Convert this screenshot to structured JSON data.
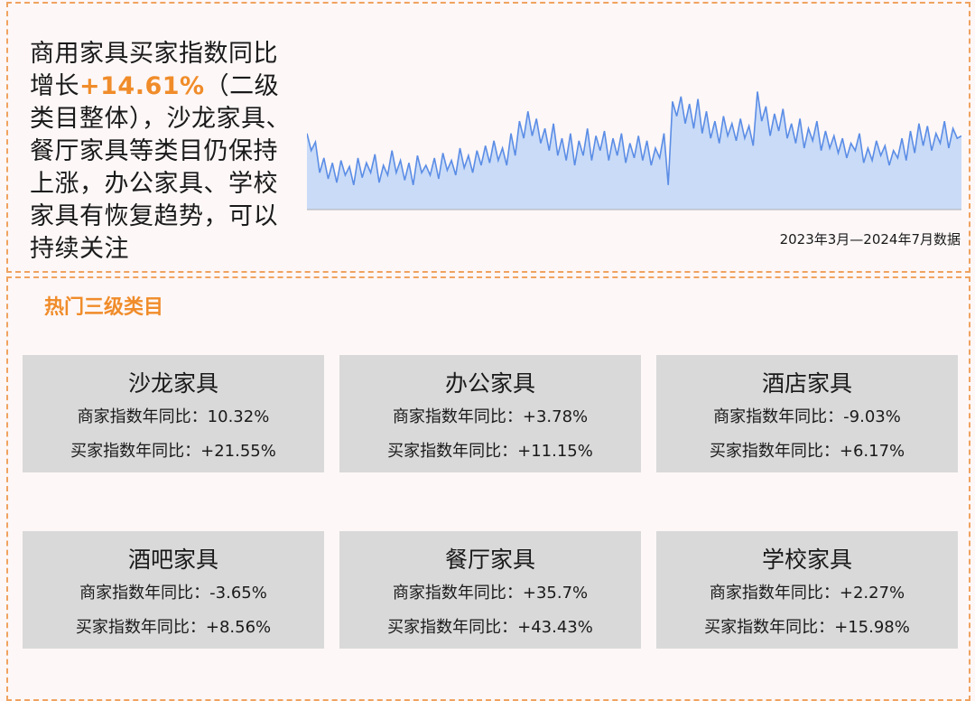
{
  "summary": {
    "part1": "商用家具买家指数同比增长",
    "highlight": "+14.61%",
    "part2": "（二级类目整体），沙龙家具、餐厅家具等类目仍保持上涨，办公家具、学校家具有恢复趋势，可以持续关注"
  },
  "chart_note": "2023年3月—2024年7月数据",
  "section_title": "热门三级类目",
  "colors": {
    "accent": "#f08c2a",
    "border": "#f0a360",
    "chart_line": "#5b8de6",
    "chart_fill": "#c9dbf7",
    "card_bg": "#d9d9d9"
  },
  "categories": [
    {
      "name": "沙龙家具",
      "seller": "商家指数年同比：10.32%",
      "buyer": "买家指数年同比：+21.55%"
    },
    {
      "name": "办公家具",
      "seller": "商家指数年同比：+3.78%",
      "buyer": "买家指数年同比：+11.15%"
    },
    {
      "name": "酒店家具",
      "seller": "商家指数年同比：-9.03%",
      "buyer": "买家指数年同比：+6.17%"
    },
    {
      "name": "酒吧家具",
      "seller": "商家指数年同比：-3.65%",
      "buyer": "买家指数年同比：+8.56%"
    },
    {
      "name": "餐厅家具",
      "seller": "商家指数年同比：+35.7%",
      "buyer": "买家指数年同比：+43.43%"
    },
    {
      "name": "学校家具",
      "seller": "商家指数年同比：+2.27%",
      "buyer": "买家指数年同比：+15.98%"
    }
  ],
  "chart_data": {
    "type": "area",
    "title": "",
    "xlabel": "",
    "ylabel": "",
    "x_range": "2023年3月—2024年7月",
    "grid": false,
    "ylim": [
      0,
      100
    ],
    "values": [
      62,
      48,
      55,
      30,
      42,
      25,
      38,
      22,
      40,
      28,
      35,
      20,
      42,
      26,
      38,
      30,
      45,
      22,
      36,
      28,
      48,
      30,
      40,
      24,
      38,
      20,
      44,
      30,
      36,
      28,
      42,
      25,
      46,
      32,
      40,
      28,
      50,
      34,
      44,
      30,
      48,
      36,
      52,
      38,
      56,
      40,
      50,
      36,
      62,
      44,
      72,
      58,
      80,
      60,
      74,
      54,
      66,
      48,
      70,
      44,
      58,
      40,
      62,
      36,
      56,
      44,
      66,
      40,
      60,
      48,
      64,
      40,
      58,
      44,
      62,
      38,
      54,
      42,
      60,
      40,
      56,
      36,
      50,
      42,
      62,
      20,
      88,
      76,
      92,
      70,
      86,
      66,
      90,
      62,
      80,
      58,
      72,
      54,
      76,
      60,
      70,
      56,
      74,
      58,
      68,
      52,
      96,
      72,
      84,
      60,
      78,
      64,
      82,
      58,
      70,
      54,
      74,
      50,
      66,
      56,
      72,
      48,
      64,
      50,
      60,
      46,
      58,
      42,
      54,
      48,
      62,
      38,
      50,
      40,
      56,
      44,
      52,
      36,
      48,
      42,
      58,
      40,
      64,
      46,
      70,
      52,
      68,
      48,
      62,
      54,
      72,
      50,
      66,
      58,
      60
    ]
  }
}
